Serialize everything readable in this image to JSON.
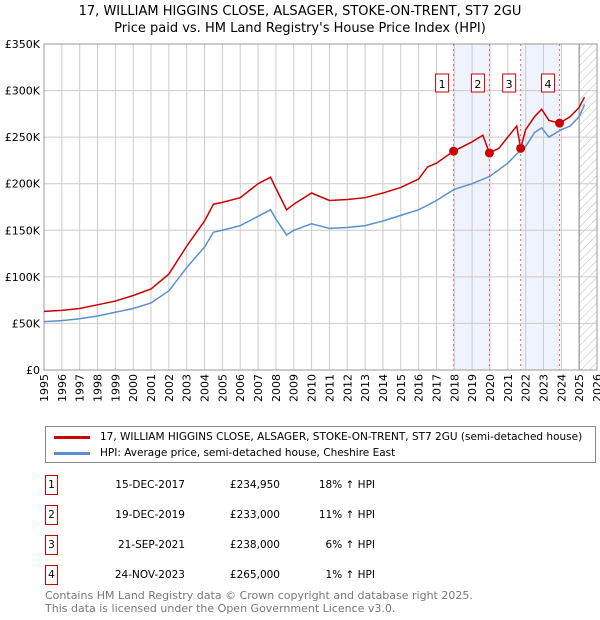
{
  "chart_data": {
    "type": "line",
    "title": "17, WILLIAM HIGGINS CLOSE, ALSAGER, STOKE-ON-TRENT, ST7 2GU",
    "subtitle": "Price paid vs. HM Land Registry's House Price Index (HPI)",
    "xlim": [
      1995,
      2026
    ],
    "ylim": [
      0,
      350000
    ],
    "x_ticks": [
      "1995",
      "1996",
      "1997",
      "1998",
      "1999",
      "2000",
      "2001",
      "2002",
      "2003",
      "2004",
      "2005",
      "2006",
      "2007",
      "2008",
      "2009",
      "2010",
      "2011",
      "2012",
      "2013",
      "2014",
      "2015",
      "2016",
      "2017",
      "2018",
      "2019",
      "2020",
      "2021",
      "2022",
      "2023",
      "2024",
      "2025",
      "2026"
    ],
    "y_ticks": [
      {
        "v": 0,
        "label": "£0"
      },
      {
        "v": 50000,
        "label": "£50K"
      },
      {
        "v": 100000,
        "label": "£100K"
      },
      {
        "v": 150000,
        "label": "£150K"
      },
      {
        "v": 200000,
        "label": "£200K"
      },
      {
        "v": 250000,
        "label": "£250K"
      },
      {
        "v": 300000,
        "label": "£300K"
      },
      {
        "v": 350000,
        "label": "£350K"
      }
    ],
    "grid": true,
    "series": [
      {
        "name": "17, WILLIAM HIGGINS CLOSE, ALSAGER, STOKE-ON-TRENT, ST7 2GU (semi-detached house)",
        "color": "#cc0000",
        "x": [
          1995,
          1996,
          1997,
          1998,
          1999,
          2000,
          2001,
          2002,
          2003,
          2004,
          2004.5,
          2005,
          2006,
          2007,
          2007.7,
          2008,
          2008.6,
          2009,
          2010,
          2011,
          2012,
          2013,
          2014,
          2015,
          2016,
          2016.5,
          2017,
          2017.96,
          2018.5,
          2019,
          2019.6,
          2019.97,
          2020.5,
          2021,
          2021.5,
          2021.72,
          2022,
          2022.5,
          2022.9,
          2023.3,
          2023.9,
          2024.5,
          2025,
          2025.3
        ],
        "y": [
          63000,
          64000,
          66000,
          70000,
          74000,
          80000,
          87000,
          103000,
          133000,
          160000,
          178000,
          180000,
          185000,
          200000,
          207000,
          195000,
          172000,
          178000,
          190000,
          182000,
          183000,
          185000,
          190000,
          196000,
          205000,
          218000,
          222000,
          234950,
          240000,
          245000,
          252000,
          233000,
          238000,
          250000,
          262000,
          238000,
          258000,
          272000,
          280000,
          268000,
          265000,
          272000,
          282000,
          293000
        ]
      },
      {
        "name": "HPI: Average price, semi-detached house, Cheshire East",
        "color": "#5b8fd1",
        "x": [
          1995,
          1996,
          1997,
          1998,
          1999,
          2000,
          2001,
          2002,
          2003,
          2004,
          2004.5,
          2005,
          2006,
          2007,
          2007.7,
          2008,
          2008.6,
          2009,
          2010,
          2011,
          2012,
          2013,
          2014,
          2015,
          2016,
          2017,
          2018,
          2019,
          2020,
          2021,
          2021.5,
          2022,
          2022.5,
          2022.9,
          2023.3,
          2024,
          2024.5,
          2025,
          2025.3
        ],
        "y": [
          52000,
          53000,
          55000,
          58000,
          62000,
          66000,
          72000,
          85000,
          110000,
          132000,
          148000,
          150000,
          155000,
          165000,
          172000,
          162000,
          145000,
          150000,
          157000,
          152000,
          153000,
          155000,
          160000,
          166000,
          172000,
          182000,
          194000,
          200000,
          208000,
          222000,
          232000,
          240000,
          255000,
          260000,
          250000,
          258000,
          262000,
          272000,
          285000
        ]
      }
    ],
    "sales": [
      {
        "n": "1",
        "x": 2017.96,
        "y": 234950
      },
      {
        "n": "2",
        "x": 2019.97,
        "y": 233000
      },
      {
        "n": "3",
        "x": 2021.72,
        "y": 238000
      },
      {
        "n": "4",
        "x": 2023.9,
        "y": 265000
      }
    ],
    "shaded_ranges": [
      [
        2017.96,
        2019.97
      ],
      [
        2021.72,
        2023.9
      ]
    ],
    "hatched_from": 2025.0
  },
  "legend": {
    "red": "17, WILLIAM HIGGINS CLOSE, ALSAGER, STOKE-ON-TRENT, ST7 2GU (semi-detached house)",
    "blue": "HPI: Average price, semi-detached house, Cheshire East"
  },
  "transactions": [
    {
      "n": "1",
      "date": "15-DEC-2017",
      "price": "£234,950",
      "hpi": "18% ↑ HPI"
    },
    {
      "n": "2",
      "date": "19-DEC-2019",
      "price": "£233,000",
      "hpi": "11% ↑ HPI"
    },
    {
      "n": "3",
      "date": "21-SEP-2021",
      "price": "£238,000",
      "hpi": "6% ↑ HPI"
    },
    {
      "n": "4",
      "date": "24-NOV-2023",
      "price": "£265,000",
      "hpi": "1% ↑ HPI"
    }
  ],
  "footer": {
    "line1": "Contains HM Land Registry data © Crown copyright and database right 2025.",
    "line2": "This data is licensed under the Open Government Licence v3.0."
  }
}
